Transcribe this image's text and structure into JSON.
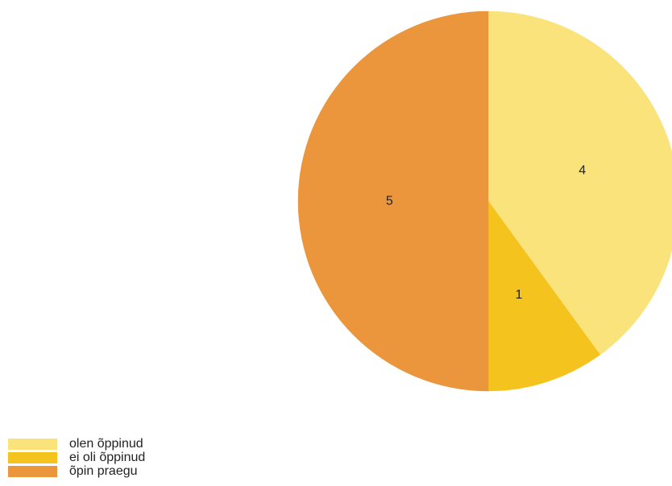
{
  "chart_data": {
    "type": "pie",
    "title": "",
    "legend_position": "bottom-left",
    "start_angle_deg": 0,
    "direction": "clockwise",
    "slices": [
      {
        "label": "olen õppinud",
        "value": 4,
        "value_label": "4",
        "color": "#f9e37a"
      },
      {
        "label": "ei oli õppinud",
        "value": 1,
        "value_label": "1",
        "color": "#f5c31e"
      },
      {
        "label": "õpin praegu",
        "value": 5,
        "value_label": "5",
        "color": "#eb963d"
      }
    ]
  }
}
